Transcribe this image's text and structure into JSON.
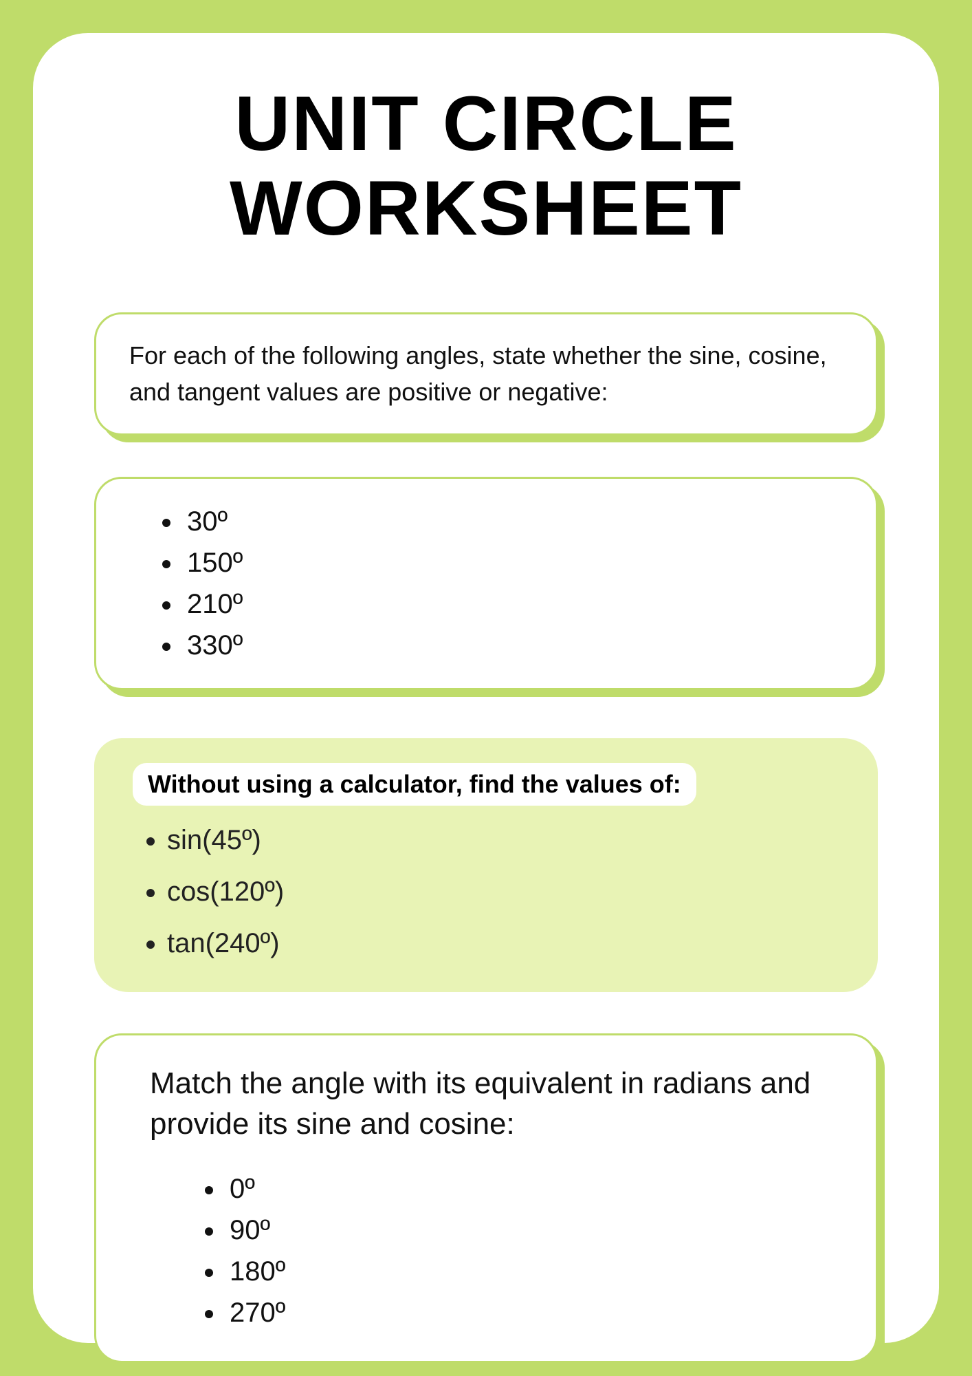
{
  "title": "UNIT CIRCLE WORKSHEET",
  "section1": {
    "prompt": "For each of the following angles, state whether the sine, cosine, and tangent values are positive or negative:",
    "items": [
      "30º",
      "150º",
      "210º",
      "330º"
    ]
  },
  "section2": {
    "prompt": "Without using a calculator, find the values of:",
    "items": [
      "sin(45º)",
      "cos(120º)",
      "tan(240º)"
    ]
  },
  "section3": {
    "prompt": "Match the angle with its equivalent in radians and provide its sine and cosine:",
    "items": [
      "0º",
      "90º",
      "180º",
      "270º"
    ]
  },
  "colors": {
    "page_bg": "#bfdc6a",
    "inner_bg": "#ffffff",
    "filled_card_bg": "#e8f3b5",
    "border": "#bfdc6a",
    "text": "#111111"
  }
}
